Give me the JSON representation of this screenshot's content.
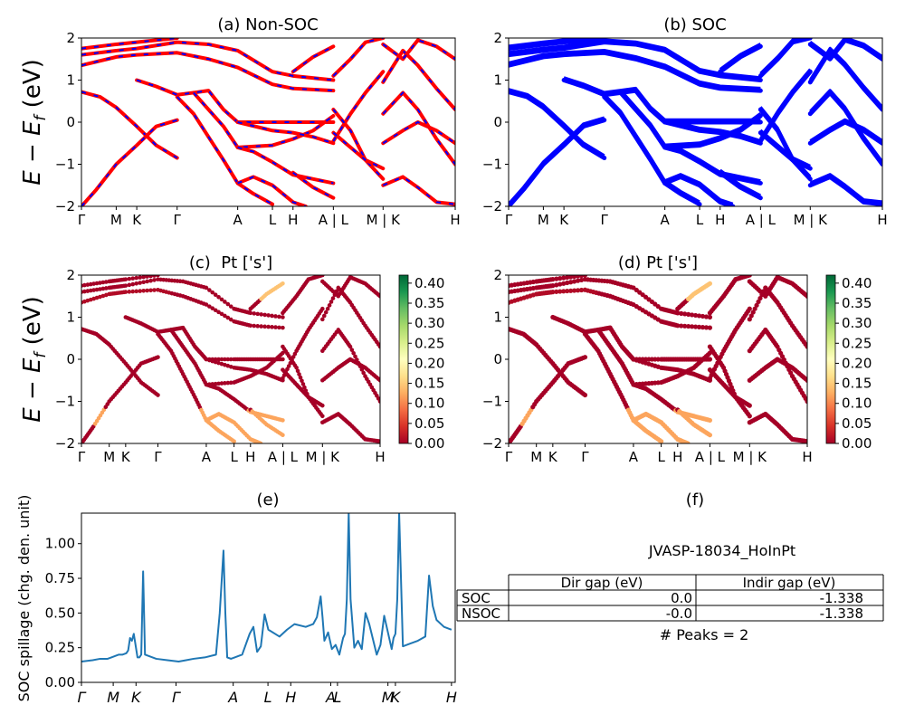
{
  "figure": {
    "energy_ylabel_main": "E − E",
    "energy_ylabel_sub": "f",
    "energy_ylabel_unit": " (eV)",
    "spillage_ylabel": "SOC spillage (chg. den. unit)"
  },
  "k_path": {
    "labels": [
      "Γ",
      "M",
      "K",
      "Γ",
      "A",
      "L",
      "H",
      "A | L",
      "M | K",
      "H"
    ],
    "positions": [
      0,
      0.093,
      0.148,
      0.256,
      0.418,
      0.511,
      0.566,
      0.674,
      0.807,
      1.0
    ]
  },
  "spillage_k_path": {
    "labels": [
      "Γ",
      "M",
      "K",
      "Γ",
      "A",
      "L",
      "H",
      "A",
      "L",
      "M",
      "K",
      "H"
    ],
    "positions": [
      0,
      0.085,
      0.146,
      0.253,
      0.406,
      0.499,
      0.56,
      0.667,
      0.685,
      0.82,
      0.84,
      0.99
    ]
  },
  "colorbar": {
    "ticks": [
      "0.00",
      "0.05",
      "0.10",
      "0.15",
      "0.20",
      "0.25",
      "0.30",
      "0.35",
      "0.40"
    ],
    "max": 0.42
  },
  "table": {
    "material": "JVASP-18034_HoInPt",
    "headers": [
      "",
      "Dir gap (eV)",
      "Indir gap (eV)"
    ],
    "rows": [
      [
        "SOC",
        "0.0",
        "-1.338"
      ],
      [
        "NSOC",
        "-0.0",
        "-1.338"
      ]
    ],
    "peaks_text": "# Peaks = 2"
  },
  "chart_data": [
    {
      "panel": "a",
      "type": "line",
      "title": "(a) Non-SOC",
      "ylabel": "E − E_f (eV)",
      "ylim": [
        -2,
        2
      ],
      "yticks": [
        "-2",
        "-1",
        "0",
        "1",
        "2"
      ],
      "style": "red bands with blue dashes",
      "colors": {
        "primary": "#ff0000",
        "secondary": "#0000ff"
      },
      "breaks": [
        0.674,
        0.807
      ],
      "bands": [
        [
          [
            0,
            0.72
          ],
          [
            0.05,
            0.6
          ],
          [
            0.093,
            0.35
          ],
          [
            0.148,
            -0.1
          ],
          [
            0.2,
            -0.55
          ],
          [
            0.256,
            -0.85
          ]
        ],
        [
          [
            0,
            -2.0
          ],
          [
            0.04,
            -1.6
          ],
          [
            0.093,
            -1.0
          ],
          [
            0.148,
            -0.55
          ],
          [
            0.2,
            -0.1
          ],
          [
            0.256,
            0.05
          ]
        ],
        [
          [
            0,
            1.35
          ],
          [
            0.093,
            1.55
          ],
          [
            0.148,
            1.6
          ],
          [
            0.256,
            1.65
          ],
          [
            0.34,
            1.5
          ],
          [
            0.418,
            1.3
          ],
          [
            0.511,
            0.9
          ],
          [
            0.566,
            0.8
          ],
          [
            0.674,
            0.75
          ]
        ],
        [
          [
            0,
            1.6
          ],
          [
            0.093,
            1.7
          ],
          [
            0.148,
            1.75
          ],
          [
            0.256,
            1.9
          ],
          [
            0.34,
            1.85
          ],
          [
            0.418,
            1.7
          ],
          [
            0.511,
            1.2
          ],
          [
            0.566,
            1.1
          ],
          [
            0.674,
            1.0
          ]
        ],
        [
          [
            0,
            1.75
          ],
          [
            0.093,
            1.85
          ],
          [
            0.148,
            1.9
          ],
          [
            0.256,
            2.0
          ]
        ],
        [
          [
            0.148,
            1.0
          ],
          [
            0.2,
            0.85
          ],
          [
            0.256,
            0.65
          ],
          [
            0.3,
            0.7
          ],
          [
            0.34,
            0.75
          ],
          [
            0.38,
            0.3
          ],
          [
            0.418,
            0.0
          ],
          [
            0.511,
            0.0
          ],
          [
            0.566,
            0.0
          ],
          [
            0.62,
            0.0
          ],
          [
            0.674,
            0.0
          ]
        ],
        [
          [
            0.256,
            0.6
          ],
          [
            0.3,
            0.2
          ],
          [
            0.34,
            -0.35
          ],
          [
            0.38,
            -0.9
          ],
          [
            0.418,
            -1.45
          ],
          [
            0.46,
            -1.7
          ],
          [
            0.511,
            -1.95
          ]
        ],
        [
          [
            0.3,
            0.7
          ],
          [
            0.34,
            0.3
          ],
          [
            0.38,
            -0.1
          ],
          [
            0.418,
            -0.6
          ],
          [
            0.511,
            -0.55
          ],
          [
            0.566,
            -0.4
          ],
          [
            0.62,
            -0.2
          ],
          [
            0.674,
            0.15
          ]
        ],
        [
          [
            0.418,
            -0.6
          ],
          [
            0.46,
            -0.7
          ],
          [
            0.511,
            -0.95
          ],
          [
            0.566,
            -1.25
          ],
          [
            0.62,
            -1.35
          ],
          [
            0.674,
            -1.45
          ]
        ],
        [
          [
            0.418,
            -1.45
          ],
          [
            0.46,
            -1.3
          ],
          [
            0.511,
            -1.5
          ],
          [
            0.566,
            -1.9
          ],
          [
            0.6,
            -2.0
          ]
        ],
        [
          [
            0.566,
            -1.2
          ],
          [
            0.62,
            -1.55
          ],
          [
            0.674,
            -1.8
          ]
        ],
        [
          [
            0.418,
            0.0
          ],
          [
            0.511,
            -0.2
          ],
          [
            0.566,
            -0.25
          ],
          [
            0.62,
            -0.35
          ],
          [
            0.674,
            -0.5
          ]
        ],
        [
          [
            0.674,
            -0.45
          ],
          [
            0.72,
            0.2
          ],
          [
            0.76,
            0.7
          ],
          [
            0.807,
            1.2
          ]
        ],
        [
          [
            0.674,
            0.3
          ],
          [
            0.72,
            -0.2
          ],
          [
            0.76,
            -0.9
          ],
          [
            0.807,
            -1.35
          ]
        ],
        [
          [
            0.674,
            -0.25
          ],
          [
            0.72,
            -0.6
          ],
          [
            0.76,
            -0.9
          ],
          [
            0.807,
            -1.1
          ]
        ],
        [
          [
            0.674,
            1.1
          ],
          [
            0.72,
            1.5
          ],
          [
            0.76,
            1.9
          ],
          [
            0.807,
            2.0
          ]
        ],
        [
          [
            0.807,
            -0.5
          ],
          [
            0.86,
            -0.2
          ],
          [
            0.9,
            0.0
          ],
          [
            0.95,
            -0.2
          ],
          [
            1.0,
            -0.5
          ]
        ],
        [
          [
            0.807,
            0.95
          ],
          [
            0.86,
            1.7
          ],
          [
            0.9,
            1.35
          ],
          [
            0.95,
            0.8
          ],
          [
            1.0,
            0.3
          ]
        ],
        [
          [
            0.807,
            0.2
          ],
          [
            0.86,
            0.7
          ],
          [
            0.9,
            0.3
          ],
          [
            0.95,
            -0.4
          ],
          [
            1.0,
            -1.0
          ]
        ],
        [
          [
            0.807,
            1.85
          ],
          [
            0.86,
            1.5
          ],
          [
            0.9,
            1.95
          ],
          [
            0.95,
            1.8
          ],
          [
            1.0,
            1.5
          ]
        ],
        [
          [
            0.807,
            -1.5
          ],
          [
            0.86,
            -1.3
          ],
          [
            0.9,
            -1.55
          ],
          [
            0.95,
            -1.9
          ],
          [
            1.0,
            -1.95
          ]
        ],
        [
          [
            0.566,
            1.2
          ],
          [
            0.62,
            1.55
          ],
          [
            0.674,
            1.8
          ]
        ]
      ]
    },
    {
      "panel": "b",
      "type": "line",
      "title": "(b) SOC",
      "ylim": [
        -2,
        2
      ],
      "yticks": [
        "-2",
        "-1",
        "0",
        "1",
        "2"
      ],
      "style": "thick blue bands",
      "colors": {
        "primary": "#0000ff"
      },
      "breaks": [
        0.674,
        0.807
      ],
      "bands": "same as panel a (spin-orbit split)"
    },
    {
      "panel": "c",
      "type": "scatter",
      "title": "(c)  Pt ['s']",
      "ylabel": "E − E_f (eV)",
      "ylim": [
        -2,
        2
      ],
      "yticks": [
        "-2",
        "-1",
        "0",
        "1",
        "2"
      ],
      "colormap": "RdYlGn",
      "clim": [
        0,
        0.42
      ],
      "bands": "same as panel a",
      "highlight_weight": 0.12
    },
    {
      "panel": "d",
      "type": "scatter",
      "title": "(d) Pt ['s']",
      "ylim": [
        -2,
        2
      ],
      "yticks": [
        "-2",
        "-1",
        "0",
        "1",
        "2"
      ],
      "colormap": "RdYlGn",
      "clim": [
        0,
        0.42
      ],
      "bands": "same as panel b",
      "highlight_weight": 0.12
    },
    {
      "panel": "e",
      "type": "line",
      "title": "(e)",
      "ylabel": "SOC spillage (chg. den. unit)",
      "ylim": [
        0,
        1.22
      ],
      "yticks": [
        "0.00",
        "0.25",
        "0.50",
        "0.75",
        "1.00"
      ],
      "ytick_values": [
        0,
        0.25,
        0.5,
        0.75,
        1.0
      ],
      "color": "#1f77b4",
      "x": [
        0,
        0.03,
        0.05,
        0.07,
        0.08,
        0.1,
        0.11,
        0.12,
        0.125,
        0.13,
        0.135,
        0.14,
        0.15,
        0.155,
        0.16,
        0.165,
        0.17,
        0.2,
        0.23,
        0.26,
        0.28,
        0.3,
        0.33,
        0.36,
        0.37,
        0.38,
        0.385,
        0.39,
        0.4,
        0.41,
        0.43,
        0.45,
        0.46,
        0.47,
        0.48,
        0.49,
        0.5,
        0.53,
        0.55,
        0.57,
        0.6,
        0.62,
        0.63,
        0.64,
        0.645,
        0.65,
        0.66,
        0.67,
        0.68,
        0.69,
        0.7,
        0.705,
        0.71,
        0.715,
        0.72,
        0.73,
        0.74,
        0.75,
        0.76,
        0.77,
        0.79,
        0.8,
        0.81,
        0.82,
        0.83,
        0.835,
        0.84,
        0.845,
        0.85,
        0.86,
        0.88,
        0.9,
        0.92,
        0.93,
        0.94,
        0.95,
        0.97,
        0.99
      ],
      "y": [
        0.15,
        0.16,
        0.17,
        0.17,
        0.18,
        0.2,
        0.2,
        0.21,
        0.23,
        0.32,
        0.3,
        0.35,
        0.18,
        0.18,
        0.2,
        0.8,
        0.2,
        0.17,
        0.16,
        0.15,
        0.16,
        0.17,
        0.18,
        0.2,
        0.5,
        0.95,
        0.5,
        0.18,
        0.17,
        0.18,
        0.2,
        0.35,
        0.4,
        0.22,
        0.26,
        0.49,
        0.38,
        0.33,
        0.38,
        0.42,
        0.4,
        0.42,
        0.47,
        0.62,
        0.47,
        0.3,
        0.36,
        0.24,
        0.27,
        0.2,
        0.32,
        0.35,
        0.6,
        1.22,
        0.6,
        0.25,
        0.3,
        0.24,
        0.5,
        0.42,
        0.2,
        0.27,
        0.48,
        0.36,
        0.24,
        0.32,
        0.35,
        0.6,
        1.22,
        0.26,
        0.28,
        0.3,
        0.33,
        0.77,
        0.55,
        0.45,
        0.4,
        0.38
      ]
    }
  ]
}
